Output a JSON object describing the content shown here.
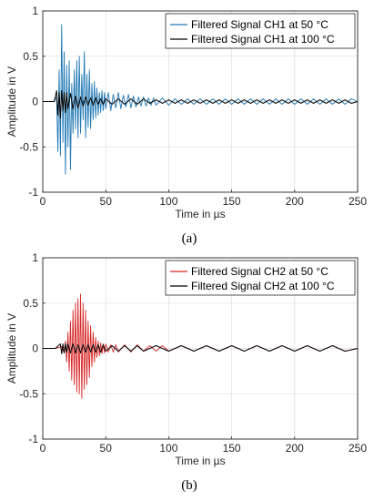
{
  "chart_data": [
    {
      "type": "line",
      "caption": "(a)",
      "xlabel": "Time in µs",
      "ylabel": "Amplitude in V",
      "xlim": [
        0,
        250
      ],
      "ylim": [
        -1,
        1
      ],
      "xticks": [
        "0",
        "50",
        "100",
        "150",
        "200",
        "250"
      ],
      "yticks": [
        "-1",
        "-0.5",
        "0",
        "0.5",
        "1"
      ],
      "grid": true,
      "legend_position": "top-right",
      "series": [
        {
          "name": "Filtered Signal CH1 at 50 °C",
          "color": "#1f77b4",
          "x": [
            0,
            9,
            11,
            12,
            13,
            14,
            15,
            16,
            17,
            18,
            19,
            20,
            21,
            22,
            23,
            24,
            25,
            26,
            27,
            28,
            29,
            30,
            31,
            32,
            33,
            34,
            35,
            36,
            37,
            38,
            39,
            40,
            41,
            42,
            43,
            44,
            45,
            46,
            47,
            48,
            49,
            50,
            52,
            54,
            56,
            58,
            60,
            62,
            64,
            66,
            68,
            70,
            72,
            74,
            76,
            78,
            80,
            82,
            84,
            86,
            88,
            90,
            95,
            100,
            105,
            110,
            115,
            120,
            125,
            130,
            135,
            140,
            145,
            150,
            155,
            160,
            165,
            170,
            175,
            180,
            185,
            190,
            195,
            200,
            205,
            210,
            215,
            220,
            225,
            230,
            235,
            240,
            245,
            250
          ],
          "y": [
            0,
            0,
            0.05,
            -0.55,
            0.35,
            -0.6,
            0.85,
            -0.45,
            0.55,
            -0.8,
            0.4,
            -0.5,
            0.45,
            -0.75,
            0.2,
            -0.35,
            0.35,
            -0.3,
            0.45,
            -0.4,
            0.5,
            -0.35,
            0.3,
            -0.2,
            0.55,
            -0.4,
            0.3,
            -0.28,
            0.35,
            -0.3,
            0.2,
            -0.2,
            0.22,
            -0.18,
            0.15,
            -0.15,
            0.1,
            -0.12,
            0.12,
            -0.1,
            0.1,
            -0.08,
            0.1,
            -0.1,
            0.08,
            -0.07,
            0.1,
            -0.08,
            0.07,
            -0.06,
            0.08,
            -0.07,
            0.06,
            -0.06,
            0.05,
            -0.05,
            0.05,
            -0.05,
            0.04,
            -0.04,
            0.04,
            -0.04,
            0.04,
            -0.04,
            0.03,
            -0.03,
            0.03,
            -0.03,
            0.03,
            -0.03,
            0.03,
            -0.03,
            0.03,
            -0.03,
            0.03,
            -0.03,
            0.03,
            -0.03,
            0.03,
            -0.03,
            0.03,
            -0.03,
            0.03,
            -0.03,
            0.03,
            -0.03,
            0.03,
            -0.03,
            0.03,
            -0.03,
            0.03,
            -0.03,
            0.03,
            0
          ]
        },
        {
          "name": "Filtered Signal CH1 at 100 °C",
          "color": "#000000",
          "x": [
            0,
            9,
            11,
            12,
            13,
            14,
            15,
            16,
            17,
            18,
            19,
            20,
            22,
            24,
            26,
            28,
            30,
            32,
            34,
            36,
            38,
            40,
            42,
            44,
            46,
            48,
            50,
            55,
            60,
            65,
            70,
            75,
            80,
            85,
            90,
            95,
            100,
            105,
            110,
            115,
            120,
            125,
            130,
            135,
            140,
            145,
            150,
            155,
            160,
            165,
            170,
            175,
            180,
            185,
            190,
            195,
            200,
            205,
            210,
            215,
            220,
            225,
            230,
            235,
            240,
            245,
            250
          ],
          "y": [
            0,
            0,
            0.12,
            -0.15,
            0.1,
            -0.18,
            0.12,
            -0.1,
            0.1,
            -0.12,
            0.1,
            -0.08,
            0.09,
            -0.08,
            0.06,
            -0.07,
            0.05,
            -0.05,
            0.05,
            -0.04,
            0.04,
            -0.04,
            0.04,
            -0.03,
            0.03,
            -0.03,
            0.03,
            -0.03,
            0.03,
            -0.03,
            0.03,
            -0.03,
            0.03,
            -0.02,
            0.02,
            -0.02,
            0.02,
            -0.02,
            0.02,
            -0.02,
            0.02,
            -0.02,
            0.02,
            -0.02,
            0.02,
            -0.02,
            0.02,
            -0.02,
            0.02,
            -0.02,
            0.02,
            -0.02,
            0.02,
            -0.02,
            0.02,
            -0.02,
            0.02,
            -0.02,
            0.02,
            -0.02,
            0.02,
            -0.02,
            0.02,
            -0.02,
            0.02,
            -0.02,
            0
          ]
        }
      ]
    },
    {
      "type": "line",
      "caption": "(b)",
      "xlabel": "Time in µs",
      "ylabel": "Amplitude in V",
      "xlim": [
        0,
        250
      ],
      "ylim": [
        -1,
        1
      ],
      "xticks": [
        "0",
        "50",
        "100",
        "150",
        "200",
        "250"
      ],
      "yticks": [
        "-1",
        "-0.5",
        "0",
        "0.5",
        "1"
      ],
      "grid": true,
      "legend_position": "top-right",
      "series": [
        {
          "name": "Filtered Signal CH2 at 50 °C",
          "color": "#d62728",
          "x": [
            0,
            10,
            15,
            17,
            18,
            19,
            20,
            21,
            22,
            23,
            24,
            25,
            26,
            27,
            28,
            29,
            30,
            31,
            32,
            33,
            34,
            35,
            36,
            37,
            38,
            39,
            40,
            41,
            42,
            43,
            44,
            45,
            46,
            47,
            48,
            49,
            50,
            52,
            54,
            56,
            58,
            60,
            65,
            70,
            75,
            80,
            85,
            90,
            95,
            100,
            110,
            120,
            130,
            140,
            150,
            160,
            170,
            180,
            190,
            200,
            210,
            220,
            230,
            240,
            250
          ],
          "y": [
            0,
            0,
            0.02,
            -0.05,
            0.08,
            -0.15,
            0.18,
            -0.25,
            0.3,
            -0.35,
            0.42,
            -0.4,
            0.5,
            -0.48,
            0.55,
            -0.5,
            0.6,
            -0.55,
            0.5,
            -0.45,
            0.42,
            -0.4,
            0.3,
            -0.32,
            0.25,
            -0.2,
            0.18,
            -0.15,
            0.12,
            -0.1,
            0.08,
            -0.08,
            0.06,
            -0.06,
            0.05,
            -0.05,
            0.05,
            -0.04,
            0.04,
            -0.04,
            0.04,
            -0.04,
            0.04,
            -0.04,
            0.04,
            -0.03,
            0.03,
            -0.03,
            0.03,
            -0.03,
            0.03,
            -0.03,
            0.03,
            -0.03,
            0.03,
            -0.03,
            0.03,
            -0.03,
            0.03,
            -0.03,
            0.03,
            -0.03,
            0.03,
            -0.03,
            0
          ]
        },
        {
          "name": "Filtered Signal CH2 at 100 °C",
          "color": "#000000",
          "x": [
            0,
            10,
            14,
            15,
            16,
            17,
            18,
            19,
            20,
            22,
            24,
            26,
            28,
            30,
            32,
            34,
            36,
            38,
            40,
            42,
            44,
            46,
            48,
            50,
            55,
            60,
            65,
            70,
            75,
            80,
            90,
            100,
            110,
            120,
            130,
            140,
            150,
            160,
            170,
            180,
            190,
            200,
            210,
            220,
            230,
            240,
            250
          ],
          "y": [
            0,
            0,
            0.05,
            -0.06,
            0.05,
            -0.05,
            0.05,
            -0.04,
            0.05,
            -0.05,
            0.05,
            -0.05,
            0.04,
            -0.05,
            0.04,
            -0.04,
            0.04,
            -0.04,
            0.04,
            -0.04,
            0.04,
            -0.04,
            0.04,
            -0.03,
            0.03,
            -0.03,
            0.03,
            -0.03,
            0.03,
            -0.03,
            0.03,
            -0.03,
            0.03,
            -0.03,
            0.03,
            -0.03,
            0.03,
            -0.03,
            0.03,
            -0.03,
            0.03,
            -0.03,
            0.03,
            -0.03,
            0.03,
            -0.03,
            0
          ]
        }
      ]
    }
  ]
}
